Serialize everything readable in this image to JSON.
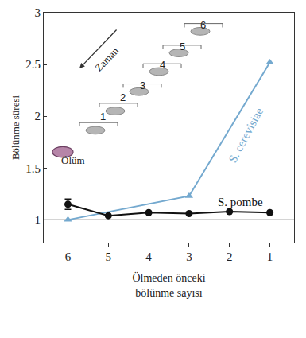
{
  "chart_data": {
    "type": "line",
    "ylabel": "Bölünme süresi",
    "xlabel": "Ölmeden önceki\nbölünme sayısı",
    "xlim": [
      6.6,
      0.4
    ],
    "xticks": [
      6,
      5,
      4,
      3,
      2,
      1
    ],
    "ylim": [
      0.78,
      3
    ],
    "yticks": [
      1,
      1.5,
      2,
      2.5,
      3
    ],
    "grid": false,
    "reference_lines": [
      {
        "y": 1,
        "color": "#555555"
      }
    ],
    "series": [
      {
        "name": "S. cerevisiae",
        "color": "#74a9cf",
        "marker": "triangle-up",
        "x": [
          6,
          3,
          1
        ],
        "values": [
          1.0,
          1.23,
          2.52
        ]
      },
      {
        "name": "S. pombe",
        "color": "#111111",
        "marker": "circle",
        "x": [
          6,
          5,
          4,
          3,
          2,
          1
        ],
        "values": [
          1.15,
          1.04,
          1.07,
          1.06,
          1.08,
          1.07
        ],
        "errors": [
          0.05,
          null,
          null,
          null,
          null,
          null
        ]
      }
    ],
    "inset": {
      "time_label": "Zaman",
      "end_label": "Ölüm",
      "steps": [
        "1",
        "2",
        "3",
        "4",
        "5",
        "6"
      ]
    }
  }
}
